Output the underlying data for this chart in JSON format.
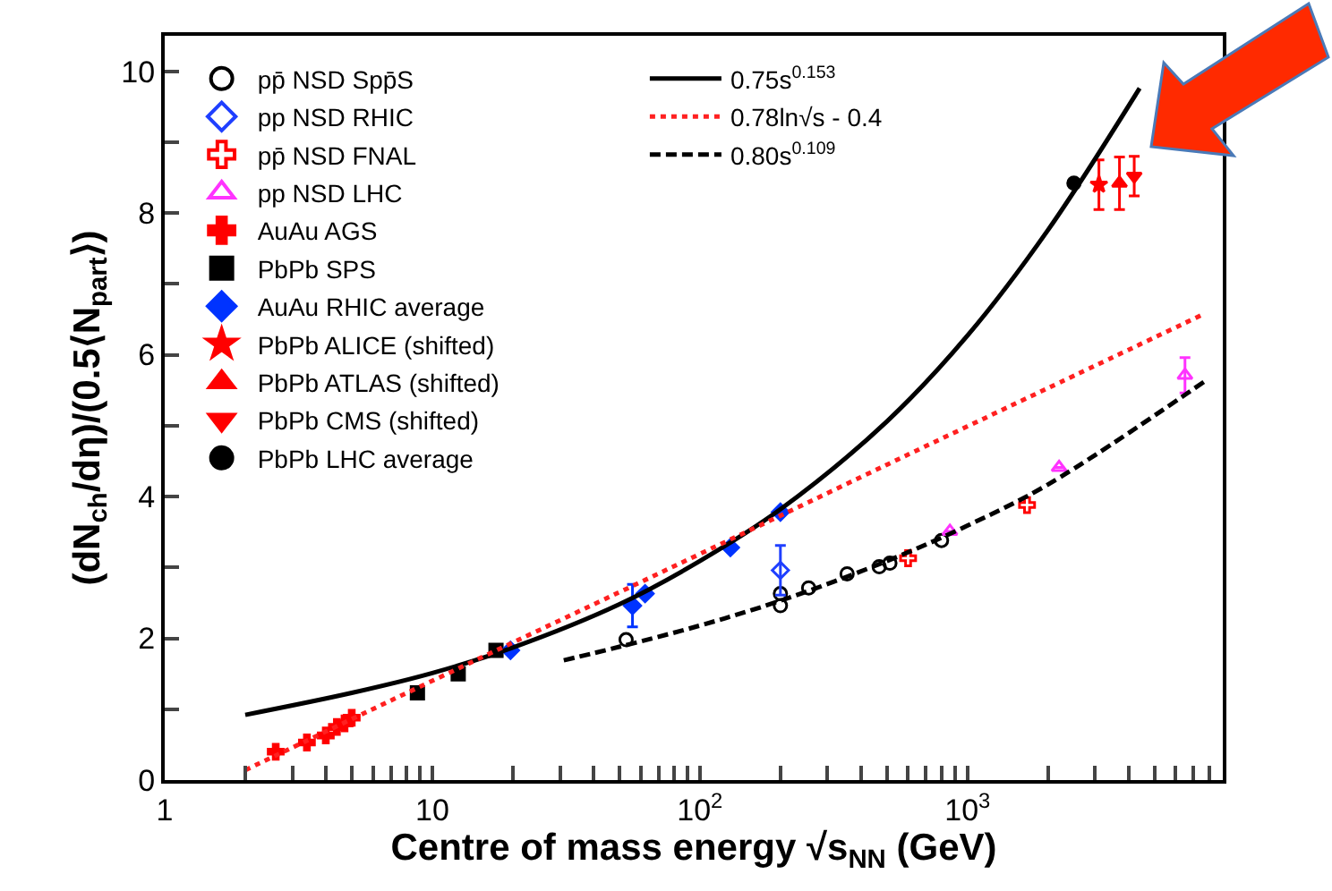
{
  "chart_data": {
    "type": "scatter",
    "xlabel": "Centre of mass energy √s$_{NN}$ (GeV)",
    "ylabel": "(dN$_{ch}$/dη)/(0.5⟨N$_{part}$⟩)",
    "log": "x",
    "xlim": [
      1,
      9000
    ],
    "ylim": [
      0,
      10.5
    ],
    "xticks": [
      1,
      {
        "value": 2,
        "label": null
      },
      {
        "value": 3,
        "label": null
      },
      {
        "value": 4,
        "label": null
      },
      {
        "value": 5,
        "label": null
      },
      {
        "value": 6,
        "label": null
      },
      {
        "value": 7,
        "label": null
      },
      {
        "value": 8,
        "label": null
      },
      {
        "value": 9,
        "label": null
      },
      10,
      {
        "value": 20,
        "label": null
      },
      {
        "value": 30,
        "label": null
      },
      {
        "value": 40,
        "label": null
      },
      {
        "value": 50,
        "label": null
      },
      {
        "value": 60,
        "label": null
      },
      {
        "value": 70,
        "label": null
      },
      {
        "value": 80,
        "label": null
      },
      {
        "value": 90,
        "label": null
      },
      {
        "value": 100,
        "label": "10$^{2}$"
      },
      {
        "value": 200,
        "label": null
      },
      {
        "value": 300,
        "label": null
      },
      {
        "value": 400,
        "label": null
      },
      {
        "value": 500,
        "label": null
      },
      {
        "value": 600,
        "label": null
      },
      {
        "value": 700,
        "label": null
      },
      {
        "value": 800,
        "label": null
      },
      {
        "value": 900,
        "label": null
      },
      {
        "value": 1000,
        "label": "10$^{3}$"
      },
      {
        "value": 2000,
        "label": null
      },
      {
        "value": 3000,
        "label": null
      },
      {
        "value": 4000,
        "label": null
      },
      {
        "value": 5000,
        "label": null
      },
      {
        "value": 6000,
        "label": null
      },
      {
        "value": 7000,
        "label": null
      },
      {
        "value": 8000,
        "label": null
      },
      {
        "value": 9000,
        "label": null
      }
    ],
    "yticks": [
      0,
      {
        "value": 1,
        "label": null
      },
      2,
      {
        "value": 3,
        "label": null
      },
      4,
      {
        "value": 5,
        "label": null
      },
      6,
      {
        "value": 7,
        "label": null
      },
      8,
      {
        "value": 9,
        "label": null
      },
      10
    ],
    "legend": "top left",
    "series": [
      {
        "name": "pp̄ NSD Spp̄S",
        "color": "#000000",
        "marker": "circle-open",
        "x": [
          53,
          200,
          200,
          255,
          355,
          468,
          513,
          800
        ],
        "values": [
          1.98,
          2.63,
          2.46,
          2.71,
          2.91,
          3.01,
          3.06,
          3.38
        ]
      },
      {
        "name": "pp NSD RHIC",
        "color": "#1f3fff",
        "marker": "diamond-open",
        "x": [
          200
        ],
        "values": [
          2.96
        ],
        "errors": [
          0.35
        ]
      },
      {
        "name": "pp̄ NSD FNAL",
        "color": "#ff0000",
        "marker": "cross-open",
        "x": [
          600,
          1670
        ],
        "values": [
          3.13,
          3.88
        ]
      },
      {
        "name": "pp NSD LHC",
        "color": "#ff33ff",
        "marker": "triangle-up-open",
        "x": [
          860,
          2200,
          6500
        ],
        "values": [
          3.51,
          4.41,
          5.71
        ],
        "errors": [
          null,
          null,
          0.25
        ]
      },
      {
        "name": "AuAu AGS",
        "color": "#ff0000",
        "marker": "cross",
        "x": [
          2.6,
          3.4,
          4.0,
          4.4,
          4.7,
          5.0
        ],
        "values": [
          0.4,
          0.53,
          0.63,
          0.75,
          0.8,
          0.88
        ]
      },
      {
        "name": "PbPb SPS",
        "color": "#000000",
        "marker": "square",
        "x": [
          8.8,
          12.5,
          17.3
        ],
        "values": [
          1.23,
          1.5,
          1.83
        ]
      },
      {
        "name": "AuAu RHIC average",
        "color": "#0033ff",
        "marker": "diamond",
        "x": [
          19.6,
          56,
          62.4,
          130,
          200
        ],
        "values": [
          1.83,
          2.46,
          2.63,
          3.28,
          3.78
        ],
        "errors": [
          null,
          0.3,
          null,
          null,
          null
        ]
      },
      {
        "name": "PbPb ALICE (shifted)",
        "color": "#ff0000",
        "marker": "star",
        "x": [
          3100
        ],
        "values": [
          8.4
        ],
        "errors": [
          0.35
        ]
      },
      {
        "name": "PbPb ATLAS (shifted)",
        "color": "#ff0000",
        "marker": "triangle-up",
        "x": [
          3700
        ],
        "values": [
          8.42
        ],
        "errors": [
          0.37
        ]
      },
      {
        "name": "PbPb CMS (shifted)",
        "color": "#ff0000",
        "marker": "triangle-down",
        "x": [
          4200
        ],
        "values": [
          8.52
        ],
        "errors": [
          0.28
        ]
      },
      {
        "name": "PbPb LHC average",
        "color": "#000000",
        "marker": "circle",
        "x": [
          2500
        ],
        "values": [
          8.42
        ]
      },
      {
        "name": "0.75s$^{0.153}$",
        "type": "line",
        "color": "#000000",
        "line_style": "solid",
        "x": [
          2,
          5,
          10,
          20,
          50,
          100,
          200,
          500,
          1000,
          2000,
          4400
        ],
        "values": [
          0.92,
          1.23,
          1.51,
          1.87,
          2.48,
          3.09,
          3.82,
          5.06,
          6.27,
          7.76,
          9.76
        ]
      },
      {
        "name": "0.78ln√s - 0.4",
        "type": "line",
        "color": "#ff2020",
        "line_style": "dotted",
        "x": [
          2,
          5,
          10,
          20,
          50,
          100,
          200,
          500,
          1000,
          2000,
          7600
        ],
        "values": [
          0.14,
          0.86,
          1.4,
          1.94,
          2.65,
          3.19,
          3.73,
          4.45,
          4.99,
          5.53,
          6.57
        ]
      },
      {
        "name": "0.80s$^{0.109}$",
        "type": "line",
        "color": "#000000",
        "line_style": "dashed",
        "x": [
          31,
          50,
          100,
          200,
          500,
          1000,
          2000,
          7800
        ],
        "values": [
          1.69,
          1.88,
          2.18,
          2.53,
          3.09,
          3.59,
          4.17,
          5.64
        ]
      }
    ]
  }
}
